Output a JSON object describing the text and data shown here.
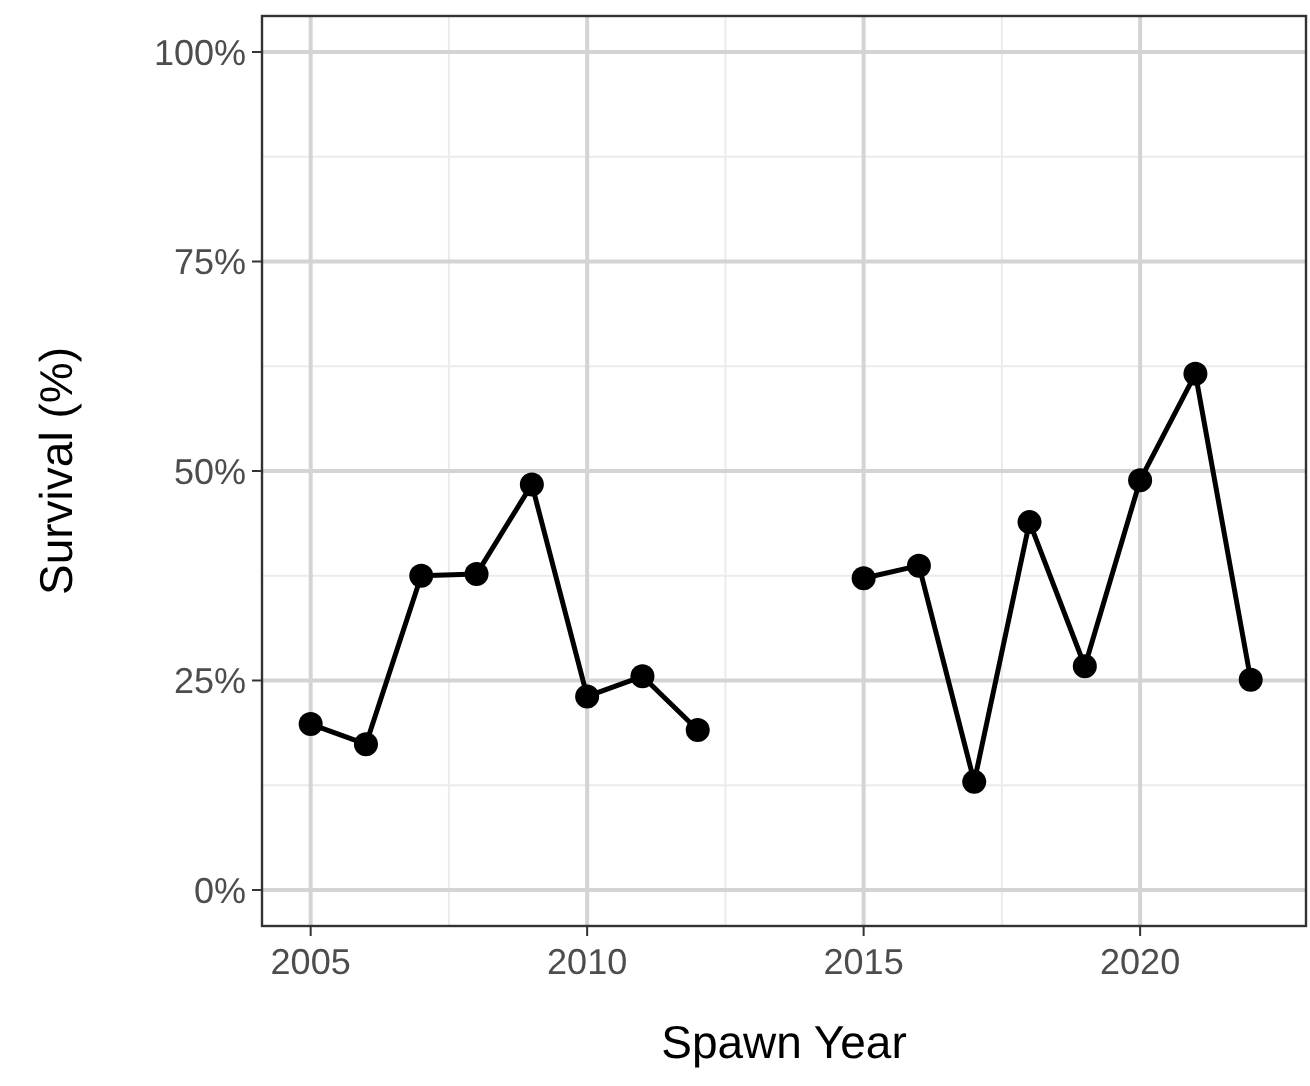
{
  "chart_data": {
    "type": "line",
    "xlabel": "Spawn Year",
    "ylabel": "Survival (%)",
    "x": [
      2005,
      2006,
      2007,
      2008,
      2009,
      2010,
      2011,
      2012,
      2013,
      2014,
      2015,
      2016,
      2017,
      2018,
      2019,
      2020,
      2021,
      2022
    ],
    "series": [
      {
        "color": "#000000",
        "values": [
          19.8,
          17.4,
          37.5,
          37.7,
          48.4,
          23.1,
          25.5,
          19.1,
          null,
          null,
          37.2,
          38.7,
          12.9,
          43.9,
          26.7,
          48.9,
          61.6,
          25.1
        ]
      }
    ],
    "xlim": [
      2004.12,
      2023
    ],
    "ylim": [
      -4.3,
      104.3
    ],
    "xticks": [
      2005,
      2010,
      2015,
      2020
    ],
    "yticks": [
      {
        "value": 0,
        "label": "0%"
      },
      {
        "value": 25,
        "label": "25%"
      },
      {
        "value": 50,
        "label": "50%"
      },
      {
        "value": 75,
        "label": "75%"
      },
      {
        "value": 100,
        "label": "100%"
      }
    ],
    "grid": true,
    "marker": "circle",
    "line_style": "solid"
  }
}
